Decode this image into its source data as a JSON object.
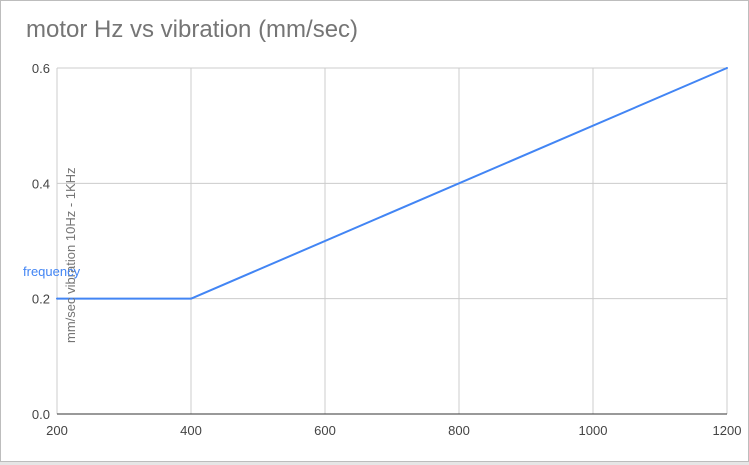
{
  "chart_data": {
    "type": "line",
    "title": "motor Hz vs vibration (mm/sec)",
    "xlabel": "",
    "ylabel": "mm/sec vibration 10Hz - 1KHz",
    "xlim": [
      200,
      1200
    ],
    "ylim": [
      0,
      0.6
    ],
    "x_ticks": [
      "200",
      "400",
      "600",
      "800",
      "1000",
      "1200"
    ],
    "y_ticks": [
      "0.0",
      "0.2",
      "0.4",
      "0.6"
    ],
    "grid": true,
    "legend_position": "left",
    "series": [
      {
        "name": "frequency",
        "color": "#4285f4",
        "x": [
          200,
          400,
          1200
        ],
        "y": [
          0.2,
          0.2,
          0.6
        ]
      }
    ]
  }
}
